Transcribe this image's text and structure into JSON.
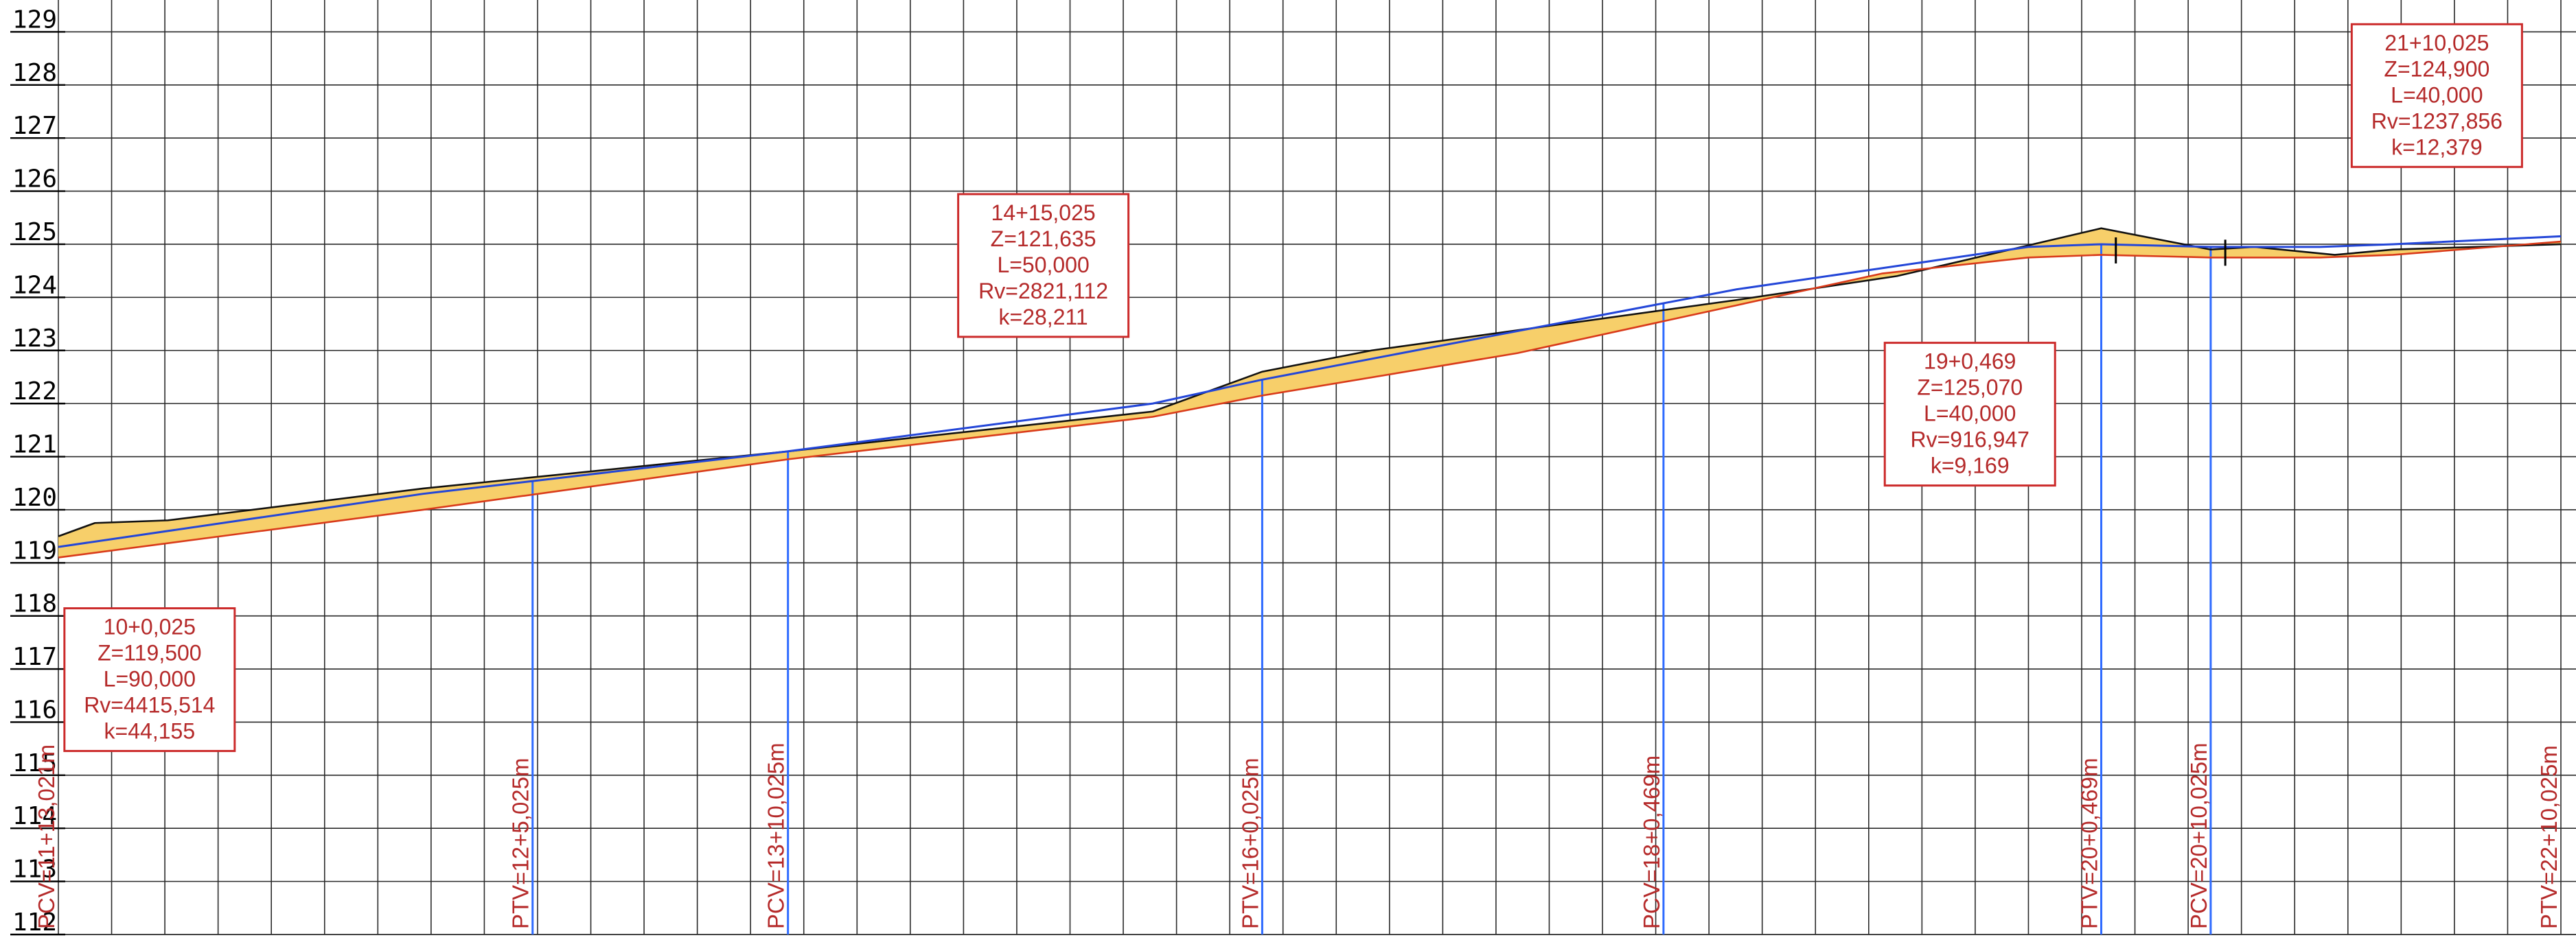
{
  "chart_data": {
    "type": "line",
    "title": "",
    "xlabel": "",
    "ylabel": "",
    "ylim": [
      112,
      129.6
    ],
    "xlim_station_m": [
      100,
      443
    ],
    "y_ticks": [
      "112",
      "113",
      "114",
      "115",
      "116",
      "117",
      "118",
      "119",
      "120",
      "121",
      "122",
      "123",
      "124",
      "125",
      "126",
      "127",
      "128",
      "129"
    ],
    "grid": true,
    "series": [
      {
        "key": "ground",
        "x": [
          100,
          105,
          115,
          150,
          200,
          250,
          265,
          280,
          330,
          352,
          380,
          395,
          401,
          412,
          420,
          443
        ],
        "y": [
          119.5,
          119.75,
          119.8,
          120.4,
          121.1,
          121.85,
          122.6,
          123.0,
          123.95,
          124.4,
          125.3,
          124.9,
          124.95,
          124.8,
          124.9,
          125.0
        ]
      },
      {
        "key": "grade",
        "x": [
          100,
          150,
          200,
          250,
          265,
          300,
          330,
          350,
          370,
          380,
          395,
          410,
          420,
          443
        ],
        "y": [
          119.1,
          120.0,
          120.95,
          121.75,
          122.15,
          122.95,
          123.85,
          124.45,
          124.75,
          124.8,
          124.75,
          124.75,
          124.8,
          125.05
        ]
      },
      {
        "key": "tangent",
        "x": [
          100,
          150,
          200,
          250,
          265,
          330,
          370,
          380,
          395,
          410,
          420,
          443
        ],
        "y": [
          119.3,
          120.3,
          121.1,
          122.0,
          122.45,
          124.15,
          124.95,
          125.0,
          124.95,
          124.95,
          125.0,
          125.15
        ]
      }
    ],
    "stations": [
      {
        "x": 100,
        "label": "PCV=11+13,021m",
        "blue": false
      },
      {
        "x": 165,
        "label": "PTV=12+5,025m",
        "blue": true
      },
      {
        "x": 200,
        "label": "PCV=13+10,025m",
        "blue": true
      },
      {
        "x": 265,
        "label": "PTV=16+0,025m",
        "blue": true
      },
      {
        "x": 320,
        "label": "PCV=18+0,469m",
        "blue": true
      },
      {
        "x": 380,
        "label": "PTV=20+0,469m",
        "blue": true
      },
      {
        "x": 395,
        "label": "PCV=20+10,025m",
        "blue": true
      },
      {
        "x": 443,
        "label": "PTV=22+10,025m",
        "blue": false
      }
    ],
    "curves": [
      {
        "lines": [
          "10+0,025",
          "Z=119,500",
          "L=90,000",
          "Rv=4415,514",
          "k=44,155"
        ],
        "anchor": {
          "x": 112.5,
          "y": 116.8
        }
      },
      {
        "lines": [
          "14+15,025",
          "Z=121,635",
          "L=50,000",
          "Rv=2821,112",
          "k=28,211"
        ],
        "anchor": {
          "x": 235,
          "y": 124.6
        }
      },
      {
        "lines": [
          "19+0,469",
          "Z=125,070",
          "L=40,000",
          "Rv=916,947",
          "k=9,169"
        ],
        "anchor": {
          "x": 362,
          "y": 121.8
        }
      },
      {
        "lines": [
          "21+10,025",
          "Z=124,900",
          "L=40,000",
          "Rv=1237,856",
          "k=12,379"
        ],
        "anchor": {
          "x": 426,
          "y": 127.8
        }
      }
    ],
    "cut_marks_x": [
      382,
      397
    ]
  }
}
